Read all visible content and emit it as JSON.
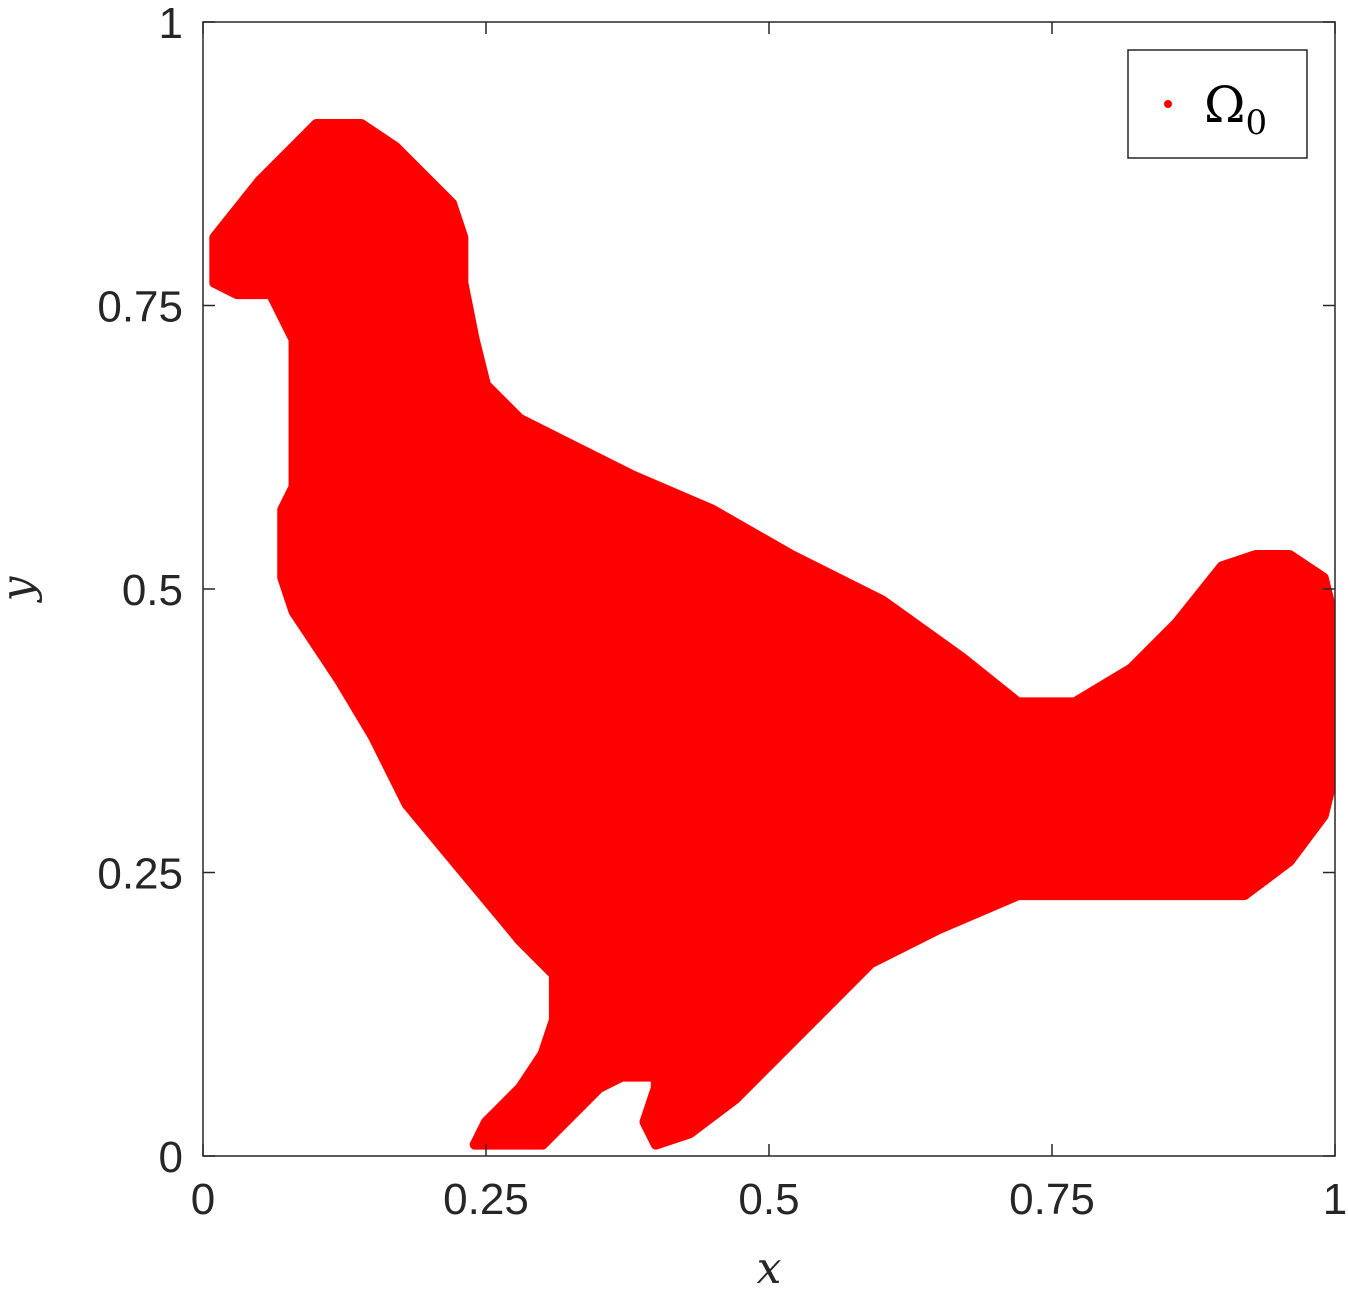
{
  "chart_data": {
    "type": "scatter",
    "xlabel": "x",
    "ylabel": "y",
    "xlim": [
      0,
      1
    ],
    "ylim": [
      0,
      1
    ],
    "xticks": [
      0,
      0.25,
      0.5,
      0.75,
      1
    ],
    "yticks": [
      0,
      0.25,
      0.5,
      0.75,
      1
    ],
    "x_tick_labels": [
      "0",
      "0.25",
      "0.5",
      "0.75",
      "1"
    ],
    "y_tick_labels": [
      "0",
      "0.25",
      "0.5",
      "0.75",
      "1"
    ],
    "grid": false,
    "legend": {
      "placement": "top-right",
      "label_symbol": "Ω",
      "label_subscript": "0"
    },
    "series": [
      {
        "color": "#ff0000",
        "marker": "dot",
        "fill": "dense point cloud filling the outlined region",
        "boundary": [
          [
            0.01,
            0.77
          ],
          [
            0.01,
            0.81
          ],
          [
            0.05,
            0.86
          ],
          [
            0.08,
            0.89
          ],
          [
            0.1,
            0.91
          ],
          [
            0.14,
            0.91
          ],
          [
            0.17,
            0.89
          ],
          [
            0.22,
            0.84
          ],
          [
            0.23,
            0.81
          ],
          [
            0.23,
            0.77
          ],
          [
            0.24,
            0.72
          ],
          [
            0.25,
            0.68
          ],
          [
            0.28,
            0.65
          ],
          [
            0.32,
            0.63
          ],
          [
            0.38,
            0.6
          ],
          [
            0.45,
            0.57
          ],
          [
            0.52,
            0.53
          ],
          [
            0.6,
            0.49
          ],
          [
            0.67,
            0.44
          ],
          [
            0.72,
            0.4
          ],
          [
            0.77,
            0.4
          ],
          [
            0.82,
            0.43
          ],
          [
            0.86,
            0.47
          ],
          [
            0.9,
            0.52
          ],
          [
            0.93,
            0.53
          ],
          [
            0.96,
            0.53
          ],
          [
            0.99,
            0.51
          ],
          [
            1.0,
            0.47
          ],
          [
            1.0,
            0.34
          ],
          [
            0.99,
            0.3
          ],
          [
            0.96,
            0.26
          ],
          [
            0.92,
            0.23
          ],
          [
            0.8,
            0.23
          ],
          [
            0.72,
            0.23
          ],
          [
            0.65,
            0.2
          ],
          [
            0.59,
            0.17
          ],
          [
            0.55,
            0.13
          ],
          [
            0.51,
            0.09
          ],
          [
            0.47,
            0.05
          ],
          [
            0.43,
            0.02
          ],
          [
            0.4,
            0.01
          ],
          [
            0.39,
            0.03
          ],
          [
            0.4,
            0.06
          ],
          [
            0.4,
            0.07
          ],
          [
            0.37,
            0.07
          ],
          [
            0.35,
            0.06
          ],
          [
            0.32,
            0.03
          ],
          [
            0.3,
            0.01
          ],
          [
            0.26,
            0.01
          ],
          [
            0.24,
            0.01
          ],
          [
            0.25,
            0.03
          ],
          [
            0.28,
            0.06
          ],
          [
            0.3,
            0.09
          ],
          [
            0.31,
            0.12
          ],
          [
            0.31,
            0.16
          ],
          [
            0.28,
            0.19
          ],
          [
            0.23,
            0.25
          ],
          [
            0.18,
            0.31
          ],
          [
            0.15,
            0.37
          ],
          [
            0.12,
            0.42
          ],
          [
            0.08,
            0.48
          ],
          [
            0.07,
            0.51
          ],
          [
            0.07,
            0.57
          ],
          [
            0.08,
            0.59
          ],
          [
            0.08,
            0.72
          ],
          [
            0.06,
            0.76
          ],
          [
            0.03,
            0.76
          ]
        ]
      }
    ]
  }
}
